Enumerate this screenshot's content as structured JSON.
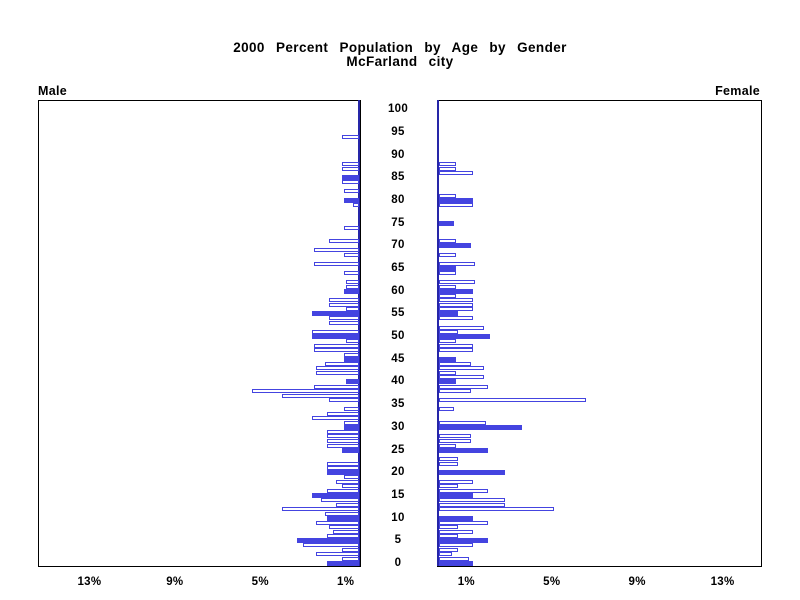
{
  "header": {
    "title": "2000 Percent Population by Age by Gender",
    "subtitle": "McFarland city"
  },
  "chart_data": {
    "type": "bar",
    "subtype": "population_pyramid",
    "title": "2000 Percent Population by Age by Gender",
    "subtitle": "McFarland city",
    "panel_labels": {
      "left": "Male",
      "right": "Female"
    },
    "legend": "none",
    "grid": "off",
    "bar_color": "#4444e0",
    "center_axis_color": "#2626a8",
    "fill_rule": "bars at ages divisible by 5 are solid filled; all other ages are hollow outlined bars",
    "age_axis": {
      "min": 0,
      "max": 100,
      "label_step": 5,
      "tick_labels": [
        "0",
        "5",
        "10",
        "15",
        "20",
        "25",
        "30",
        "35",
        "40",
        "45",
        "50",
        "55",
        "60",
        "65",
        "70",
        "75",
        "80",
        "85",
        "90",
        "95",
        "100"
      ]
    },
    "pct_axis": {
      "unit": "percent of total population",
      "male_tick_labels": [
        "13%",
        "9%",
        "5%",
        "1%"
      ],
      "female_tick_labels": [
        "1%",
        "5%",
        "9%",
        "13%"
      ],
      "tick_values": [
        1,
        5,
        9,
        13
      ],
      "max": 15
    },
    "series": [
      {
        "name": "Male",
        "side": "left",
        "unit": "%",
        "ages": "index equals single year of age 0-100",
        "values_by_age": [
          1.5,
          0.8,
          2.0,
          0.8,
          2.6,
          2.9,
          1.5,
          1.2,
          1.4,
          2.0,
          1.5,
          1.6,
          3.6,
          1.1,
          1.8,
          2.2,
          1.5,
          0.8,
          1.1,
          0.7,
          1.5,
          1.5,
          1.5,
          0,
          0,
          0.8,
          1.5,
          1.5,
          1.5,
          1.5,
          0.7,
          0.7,
          2.2,
          1.5,
          0.7,
          0,
          1.4,
          3.6,
          5.0,
          2.1,
          0.6,
          0,
          2.0,
          2.0,
          1.6,
          0.7,
          0.7,
          2.1,
          2.1,
          0.6,
          2.2,
          2.2,
          0,
          1.4,
          1.4,
          2.2,
          0.6,
          1.4,
          1.4,
          0,
          0.7,
          0.6,
          0.6,
          0,
          0.7,
          0,
          2.1,
          0,
          0.7,
          2.1,
          0,
          1.4,
          0,
          0,
          0.7,
          0,
          0,
          0,
          0,
          0.3,
          0.7,
          0,
          0.7,
          0,
          0.8,
          0.8,
          0,
          0.8,
          0.8,
          0,
          0,
          0,
          0,
          0,
          0.8,
          0,
          0,
          0,
          0,
          0,
          0
        ]
      },
      {
        "name": "Female",
        "side": "right",
        "unit": "%",
        "ages": "index equals single year of age 0-100",
        "values_by_age": [
          1.6,
          1.4,
          0.6,
          0.9,
          1.6,
          2.3,
          0.9,
          1.6,
          0.9,
          2.3,
          1.6,
          0,
          5.4,
          3.1,
          3.1,
          1.6,
          2.3,
          0.9,
          1.6,
          0,
          3.1,
          0,
          0.9,
          0.9,
          0,
          2.3,
          0.8,
          1.5,
          1.5,
          0,
          3.9,
          2.2,
          0,
          0,
          0.7,
          0,
          6.9,
          0,
          1.5,
          2.3,
          0.8,
          2.1,
          0.8,
          2.1,
          1.5,
          0.8,
          0,
          1.6,
          1.6,
          0.8,
          2.4,
          0.9,
          2.1,
          0,
          1.6,
          0.9,
          1.6,
          1.6,
          1.6,
          0.8,
          1.6,
          0.8,
          1.7,
          0,
          0.8,
          0.8,
          1.7,
          0,
          0.8,
          0,
          1.5,
          0.8,
          0,
          0,
          0,
          0.7,
          0,
          0,
          0,
          1.6,
          1.6,
          0.8,
          0,
          0,
          0,
          0,
          1.6,
          0.8,
          0.8,
          0,
          0,
          0,
          0,
          0,
          0,
          0,
          0,
          0,
          0,
          0,
          0
        ]
      }
    ]
  }
}
